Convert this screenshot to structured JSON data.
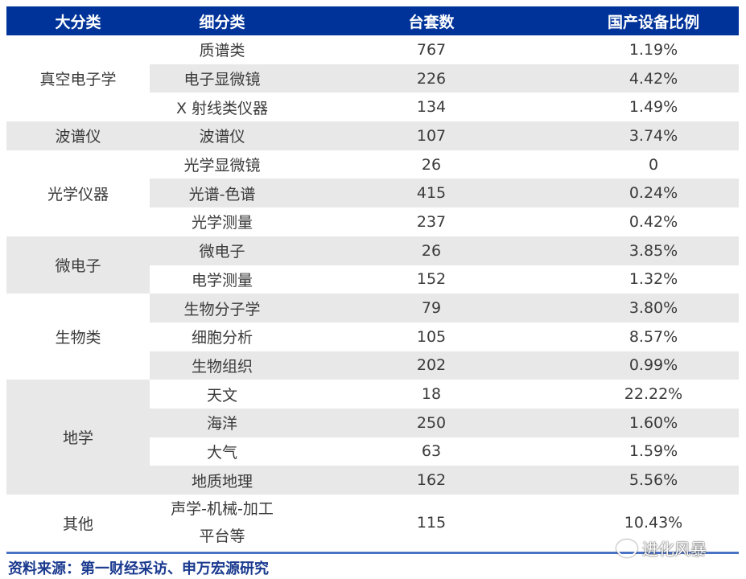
{
  "table": {
    "headers": [
      "大分类",
      "细分类",
      "台套数",
      "国产设备比例"
    ],
    "header_color": "#003399",
    "stripe_color": "#e8e8e8",
    "groups": [
      {
        "category": "真空电子学",
        "rows": [
          [
            "质谱类",
            "767",
            "1.19%"
          ],
          [
            "电子显微镜",
            "226",
            "4.42%"
          ],
          [
            "X 射线类仪器",
            "134",
            "1.49%"
          ]
        ]
      },
      {
        "category": "波谱仪",
        "rows": [
          [
            "波谱仪",
            "107",
            "3.74%"
          ]
        ]
      },
      {
        "category": "光学仪器",
        "rows": [
          [
            "光学显微镜",
            "26",
            "0"
          ],
          [
            "光谱-色谱",
            "415",
            "0.24%"
          ],
          [
            "光学测量",
            "237",
            "0.42%"
          ]
        ]
      },
      {
        "category": "微电子",
        "rows": [
          [
            "微电子",
            "26",
            "3.85%"
          ],
          [
            "电学测量",
            "152",
            "1.32%"
          ]
        ]
      },
      {
        "category": "生物类",
        "rows": [
          [
            "生物分子学",
            "79",
            "3.80%"
          ],
          [
            "细胞分析",
            "105",
            "8.57%"
          ],
          [
            "生物组织",
            "202",
            "0.99%"
          ]
        ]
      },
      {
        "category": "地学",
        "rows": [
          [
            "天文",
            "18",
            "22.22%"
          ],
          [
            "海洋",
            "250",
            "1.60%"
          ],
          [
            "大气",
            "63",
            "1.59%"
          ],
          [
            "地质地理",
            "162",
            "5.56%"
          ]
        ]
      },
      {
        "category": "其他",
        "rows": [
          [
            "声学-机械-加工\n平台等",
            "115",
            "10.43%"
          ]
        ]
      }
    ]
  },
  "footer": {
    "source": "资料来源：第一财经采访、申万宏源研究"
  },
  "watermark": {
    "text": "进化风暴",
    "icon": "wechat-icon"
  }
}
